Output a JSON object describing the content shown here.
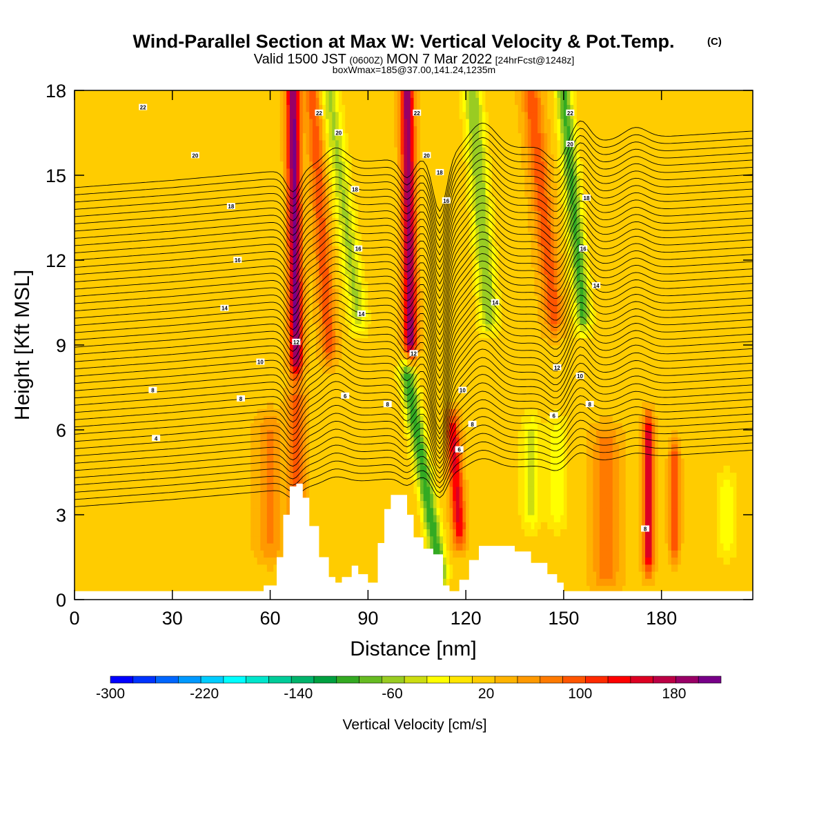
{
  "chart_data": {
    "type": "heatmap",
    "title": "Wind-Parallel Section at Max W: Vertical Velocity & Pot.Temp.",
    "title_mark": "(C)",
    "subtitle_parts": [
      "Valid 1500 JST",
      "(0600Z)",
      "MON 7 Mar 2022",
      "[24hrFcst@1248z]"
    ],
    "subtitle2": "boxWmax=185@37.00,141.24,1235m",
    "xlabel": "Distance [nm]",
    "ylabel": "Height [Kft MSL]",
    "xlim": [
      0,
      208
    ],
    "ylim": [
      0,
      18
    ],
    "x_ticks": [
      "0",
      "30",
      "60",
      "90",
      "120",
      "150",
      "180"
    ],
    "y_ticks": [
      "0",
      "3",
      "6",
      "9",
      "12",
      "15",
      "18"
    ],
    "x_tick_values": [
      0,
      30,
      60,
      90,
      120,
      150,
      180
    ],
    "y_tick_values": [
      0,
      3,
      6,
      9,
      12,
      15,
      18
    ],
    "colorbar": {
      "label": "Vertical Velocity [cm/s]",
      "tick_labels": [
        "-300",
        "-220",
        "-140",
        "-60",
        "20",
        "100",
        "180"
      ],
      "tick_values": [
        -300,
        -220,
        -140,
        -60,
        20,
        100,
        180
      ],
      "range": [
        -300,
        220
      ],
      "colors": [
        "#0000ff",
        "#0033ff",
        "#0066ff",
        "#0099ff",
        "#00ccff",
        "#00ffff",
        "#00e6cc",
        "#00cc99",
        "#00b36b",
        "#00a040",
        "#33aa22",
        "#66bb22",
        "#99cc22",
        "#ccdd11",
        "#ffff00",
        "#ffe600",
        "#ffcc00",
        "#ffb300",
        "#ff9900",
        "#ff7a00",
        "#ff5500",
        "#ff2a00",
        "#ff0000",
        "#dd0022",
        "#bb0044",
        "#990066",
        "#770088"
      ]
    },
    "shading_base": 22,
    "w_features": [
      {
        "x": 68,
        "x_top": 67,
        "width": 2.0,
        "w": 190,
        "z0": 8.5,
        "z1": 18
      },
      {
        "x": 68,
        "x_top": 68,
        "width": 2.5,
        "w": 85,
        "z0": 2.0,
        "z1": 7
      },
      {
        "x": 78,
        "x_top": 73,
        "width": 2.5,
        "w": 80,
        "z0": 9,
        "z1": 18
      },
      {
        "x": 87,
        "x_top": 78,
        "width": 3.0,
        "w": -70,
        "z0": 10,
        "z1": 18
      },
      {
        "x": 103,
        "x_top": 102,
        "width": 2.0,
        "w": 180,
        "z0": 9,
        "z1": 18
      },
      {
        "x": 112,
        "x_top": 102,
        "width": 2.5,
        "w": -120,
        "z0": 1,
        "z1": 8
      },
      {
        "x": 118,
        "x_top": 116,
        "width": 2.0,
        "w": 130,
        "z0": 2.5,
        "z1": 6
      },
      {
        "x": 127,
        "x_top": 122,
        "width": 3.0,
        "w": -85,
        "z0": 10,
        "z1": 18
      },
      {
        "x": 147,
        "x_top": 140,
        "width": 3.0,
        "w": 80,
        "z0": 10,
        "z1": 18
      },
      {
        "x": 156,
        "x_top": 150,
        "width": 2.5,
        "w": -110,
        "z0": 10,
        "z1": 18
      },
      {
        "x": 140,
        "x_top": 140,
        "width": 3.0,
        "w": -50,
        "z0": 3,
        "z1": 6
      },
      {
        "x": 148,
        "x_top": 148,
        "width": 3.0,
        "w": -40,
        "z0": 3,
        "z1": 6
      },
      {
        "x": 163,
        "x_top": 163,
        "width": 4.0,
        "w": 65,
        "z0": 1,
        "z1": 5.5
      },
      {
        "x": 176,
        "x_top": 176,
        "width": 1.5,
        "w": 150,
        "z0": 1.5,
        "z1": 6
      },
      {
        "x": 184,
        "x_top": 184,
        "width": 1.5,
        "w": 95,
        "z0": 2,
        "z1": 5
      },
      {
        "x": 200,
        "x_top": 200,
        "width": 3.0,
        "w": -40,
        "z0": 2,
        "z1": 4
      },
      {
        "x": 60,
        "x_top": 60,
        "width": 4.0,
        "w": 50,
        "z0": 2,
        "z1": 6
      }
    ],
    "terrain_x": [
      0,
      55,
      58,
      62,
      64,
      66,
      68,
      70,
      72,
      75,
      78,
      80,
      82,
      85,
      87,
      90,
      93,
      95,
      97,
      100,
      102,
      104,
      107,
      110,
      113,
      115,
      118,
      121,
      124,
      130,
      135,
      140,
      145,
      148,
      150,
      208
    ],
    "terrain_z": [
      0.3,
      0.3,
      0.5,
      1.5,
      3.0,
      4.0,
      4.1,
      3.6,
      2.6,
      1.5,
      0.8,
      0.6,
      0.8,
      1.2,
      0.9,
      0.6,
      2.0,
      3.2,
      3.7,
      3.7,
      3.0,
      2.2,
      1.8,
      1.6,
      0.5,
      0.3,
      0.7,
      1.4,
      1.9,
      1.9,
      1.7,
      1.3,
      0.9,
      0.6,
      0.3,
      0.3
    ],
    "theta_levels": [
      1,
      1.5,
      2,
      2.5,
      3,
      3.5,
      4,
      4.5,
      5,
      5.5,
      6,
      6.5,
      7,
      7.5,
      8,
      8.5,
      9,
      9.5,
      10,
      10.5,
      11,
      11.5,
      12,
      12.5,
      13,
      13.5,
      14,
      14.5,
      15,
      15.5,
      16,
      16.5,
      17,
      17.5,
      18,
      18.5,
      19,
      19.5,
      20,
      20.5,
      21,
      21.5,
      22,
      22.5,
      23
    ],
    "theta_base": {
      "x": [
        0,
        30,
        60,
        90,
        120,
        150,
        180,
        208
      ],
      "z0": [
        -5.4,
        -5.9,
        -6.5,
        -7.2,
        -7.8,
        -8.4,
        -8.9,
        -9.3
      ]
    },
    "theta_waves": [
      {
        "x": 67,
        "amp": -0.8,
        "width": 3
      },
      {
        "x": 80,
        "amp": 0.6,
        "width": 5
      },
      {
        "x": 102,
        "amp": -0.7,
        "width": 3
      },
      {
        "x": 112,
        "amp": -2.0,
        "width": 3
      },
      {
        "x": 125,
        "amp": 1.0,
        "width": 6
      },
      {
        "x": 148,
        "amp": -0.6,
        "width": 4
      },
      {
        "x": 155,
        "amp": 0.8,
        "width": 4
      },
      {
        "x": 172,
        "amp": 0.4,
        "width": 5
      }
    ],
    "contour_labels": [
      {
        "text": "22",
        "x": 21,
        "z": 17.4
      },
      {
        "text": "20",
        "x": 37,
        "z": 15.7
      },
      {
        "text": "18",
        "x": 48,
        "z": 13.9
      },
      {
        "text": "16",
        "x": 50,
        "z": 12.0
      },
      {
        "text": "14",
        "x": 46,
        "z": 10.3
      },
      {
        "text": "10",
        "x": 57,
        "z": 8.4
      },
      {
        "text": "8",
        "x": 24,
        "z": 7.4
      },
      {
        "text": "8",
        "x": 51,
        "z": 7.1
      },
      {
        "text": "4",
        "x": 25,
        "z": 5.7
      },
      {
        "text": "22",
        "x": 75,
        "z": 17.2
      },
      {
        "text": "20",
        "x": 81,
        "z": 16.5
      },
      {
        "text": "18",
        "x": 86,
        "z": 14.5
      },
      {
        "text": "16",
        "x": 87,
        "z": 12.4
      },
      {
        "text": "14",
        "x": 88,
        "z": 10.1
      },
      {
        "text": "12",
        "x": 68,
        "z": 9.1
      },
      {
        "text": "6",
        "x": 83,
        "z": 7.2
      },
      {
        "text": "8",
        "x": 96,
        "z": 6.9
      },
      {
        "text": "22",
        "x": 105,
        "z": 17.2
      },
      {
        "text": "20",
        "x": 108,
        "z": 15.7
      },
      {
        "text": "18",
        "x": 112,
        "z": 15.1
      },
      {
        "text": "16",
        "x": 114,
        "z": 14.1
      },
      {
        "text": "12",
        "x": 104,
        "z": 8.7
      },
      {
        "text": "10",
        "x": 119,
        "z": 7.4
      },
      {
        "text": "8",
        "x": 122,
        "z": 6.2
      },
      {
        "text": "6",
        "x": 118,
        "z": 5.3
      },
      {
        "text": "14",
        "x": 129,
        "z": 10.5
      },
      {
        "text": "12",
        "x": 148,
        "z": 8.2
      },
      {
        "text": "10",
        "x": 155,
        "z": 7.9
      },
      {
        "text": "8",
        "x": 158,
        "z": 6.9
      },
      {
        "text": "6",
        "x": 147,
        "z": 6.5
      },
      {
        "text": "22",
        "x": 152,
        "z": 17.2
      },
      {
        "text": "20",
        "x": 152,
        "z": 16.1
      },
      {
        "text": "18",
        "x": 157,
        "z": 14.2
      },
      {
        "text": "16",
        "x": 156,
        "z": 12.4
      },
      {
        "text": "14",
        "x": 160,
        "z": 11.1
      },
      {
        "text": "8",
        "x": 175,
        "z": 2.5
      }
    ]
  }
}
